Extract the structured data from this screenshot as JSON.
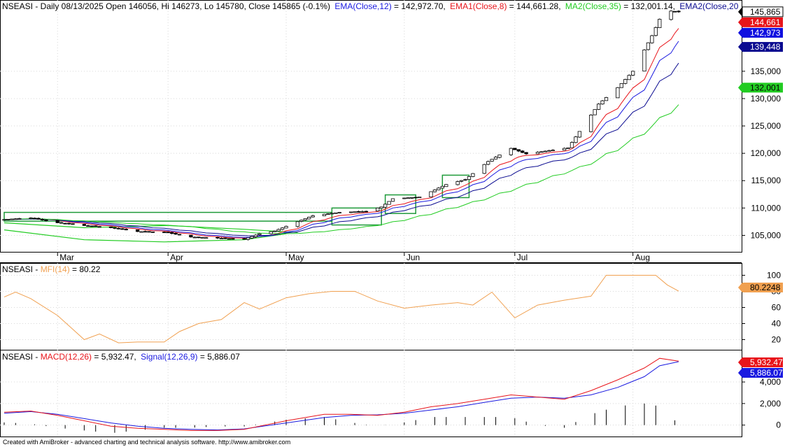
{
  "price_panel": {
    "symbol": "NSEASI",
    "header_info": " - Daily 08/13/2025 Open 146056, Hi 146273, Lo 145780, Close 145865 (-0.1%)",
    "ema12_label": "EMA(Close,12)",
    "ema12_value": " = 142,972.70,",
    "ema8_label": "EMA1(Close,8)",
    "ema8_value": " = 144,661.28,",
    "ma35_label": "MA2(Close,35)",
    "ma35_value": " = 132,001.14,",
    "ema20_label": "EMA2(Close,20",
    "price_axis_ticks": [
      "105,000",
      "110,000",
      "115,000",
      "120,000",
      "125,000",
      "130,000",
      "135,000"
    ],
    "last_value_labels": [
      {
        "text": "145,865",
        "value": 145865,
        "color": "#000000",
        "bg": "#ffffff"
      },
      {
        "text": "144,661",
        "value": 144661,
        "color": "#ffffff",
        "bg": "#e8141a"
      },
      {
        "text": "142,973",
        "value": 142973,
        "color": "#ffffff",
        "bg": "#1010e0"
      },
      {
        "text": "139,448",
        "value": 139448,
        "color": "#ffffff",
        "bg": "#0a0a90"
      },
      {
        "text": "132,001",
        "value": 132001,
        "color": "#000000",
        "bg": "#22cc22"
      }
    ],
    "month_labels": [
      "Mar",
      "Apr",
      "May",
      "Jun",
      "Jul",
      "Aug"
    ]
  },
  "mfi_panel": {
    "symbol": "NSEASI",
    "indicator_label": "MFI(14)",
    "indicator_value": " = 80.22",
    "axis_ticks": [
      "20",
      "40",
      "60",
      "80",
      "100"
    ],
    "last_value_label": "80.2248",
    "color": "#f0a050"
  },
  "macd_panel": {
    "symbol": "NSEASI",
    "macd_label": "MACD(12,26)",
    "macd_value": " = 5,932.47,",
    "signal_label": "Signal(12,26,9)",
    "signal_value": " = 5,886.07",
    "axis_ticks": [
      "0",
      "2,000",
      "4,000"
    ],
    "macd_last_label": "5,932.47",
    "signal_last_label": "5,886.07"
  },
  "footer_text": "Created with AmiBroker - advanced charting and technical analysis software. http://www.amibroker.com",
  "colors": {
    "ema8": "#e8141a",
    "ema12": "#1a1ae0",
    "ema20": "#0a0a90",
    "ma35": "#22cc22",
    "channel": "#1e9a3a",
    "mfi": "#f0a050",
    "macd": "#e8141a",
    "signal": "#1a1ae0"
  },
  "chart_data": [
    {
      "type": "candlestick",
      "name": "NSEASI Daily",
      "x_start": "2025-02-17",
      "x_end": "2025-08-13",
      "ylim": [
        102500,
        147000
      ],
      "month_starts": [
        "2025-03-03",
        "2025-04-01",
        "2025-05-02",
        "2025-06-02",
        "2025-07-01",
        "2025-08-01"
      ],
      "close_anchors": [
        [
          "2025-02-17",
          107900
        ],
        [
          "2025-02-24",
          108200
        ],
        [
          "2025-03-03",
          107300
        ],
        [
          "2025-03-10",
          106800
        ],
        [
          "2025-03-17",
          106400
        ],
        [
          "2025-03-24",
          105700
        ],
        [
          "2025-03-31",
          105600
        ],
        [
          "2025-04-07",
          104700
        ],
        [
          "2025-04-14",
          104500
        ],
        [
          "2025-04-21",
          104300
        ],
        [
          "2025-04-25",
          105300
        ],
        [
          "2025-04-29",
          105800
        ],
        [
          "2025-05-05",
          107500
        ],
        [
          "2025-05-09",
          108600
        ],
        [
          "2025-05-16",
          109200
        ],
        [
          "2025-05-23",
          109400
        ],
        [
          "2025-05-27",
          110200
        ],
        [
          "2025-05-30",
          111700
        ],
        [
          "2025-06-06",
          112000
        ],
        [
          "2025-06-13",
          114300
        ],
        [
          "2025-06-18",
          115200
        ],
        [
          "2025-06-24",
          118500
        ],
        [
          "2025-06-30",
          120900
        ],
        [
          "2025-07-04",
          119900
        ],
        [
          "2025-07-10",
          120500
        ],
        [
          "2025-07-15",
          121000
        ],
        [
          "2025-07-18",
          124000
        ],
        [
          "2025-07-23",
          129000
        ],
        [
          "2025-07-28",
          132000
        ],
        [
          "2025-08-01",
          135000
        ],
        [
          "2025-08-06",
          141500
        ],
        [
          "2025-08-08",
          144500
        ],
        [
          "2025-08-11",
          146000
        ],
        [
          "2025-08-13",
          145865
        ]
      ],
      "last_bar": {
        "date": "2025-08-13",
        "open": 146056,
        "high": 146273,
        "low": 145780,
        "close": 145865
      }
    },
    {
      "type": "line",
      "name": "MFI(14)",
      "ylim": [
        10,
        110
      ],
      "points": [
        [
          "2025-02-17",
          73
        ],
        [
          "2025-02-20",
          79
        ],
        [
          "2025-02-24",
          71
        ],
        [
          "2025-03-03",
          50
        ],
        [
          "2025-03-07",
          33
        ],
        [
          "2025-03-10",
          20
        ],
        [
          "2025-03-14",
          27
        ],
        [
          "2025-03-19",
          16
        ],
        [
          "2025-03-24",
          17
        ],
        [
          "2025-03-31",
          17
        ],
        [
          "2025-04-04",
          30
        ],
        [
          "2025-04-09",
          40
        ],
        [
          "2025-04-15",
          45
        ],
        [
          "2025-04-21",
          66
        ],
        [
          "2025-04-25",
          58
        ],
        [
          "2025-05-02",
          72
        ],
        [
          "2025-05-08",
          77
        ],
        [
          "2025-05-14",
          80
        ],
        [
          "2025-05-20",
          80
        ],
        [
          "2025-05-26",
          68
        ],
        [
          "2025-06-02",
          59
        ],
        [
          "2025-06-09",
          63
        ],
        [
          "2025-06-16",
          66
        ],
        [
          "2025-06-20",
          63
        ],
        [
          "2025-06-25",
          79
        ],
        [
          "2025-07-01",
          47
        ],
        [
          "2025-07-07",
          63
        ],
        [
          "2025-07-14",
          69
        ],
        [
          "2025-07-21",
          74
        ],
        [
          "2025-07-25",
          100
        ],
        [
          "2025-08-01",
          100
        ],
        [
          "2025-08-07",
          100
        ],
        [
          "2025-08-10",
          88
        ],
        [
          "2025-08-13",
          80.22
        ]
      ]
    },
    {
      "type": "line",
      "name": "MACD(12,26) / Signal(12,26,9)",
      "ylim": [
        -800,
        6600
      ],
      "macd_points": [
        [
          "2025-02-17",
          1200
        ],
        [
          "2025-02-24",
          1300
        ],
        [
          "2025-03-03",
          900
        ],
        [
          "2025-03-10",
          400
        ],
        [
          "2025-03-17",
          -100
        ],
        [
          "2025-03-24",
          -300
        ],
        [
          "2025-03-31",
          -400
        ],
        [
          "2025-04-07",
          -500
        ],
        [
          "2025-04-14",
          -500
        ],
        [
          "2025-04-21",
          -400
        ],
        [
          "2025-05-02",
          400
        ],
        [
          "2025-05-12",
          1000
        ],
        [
          "2025-05-19",
          1000
        ],
        [
          "2025-05-26",
          900
        ],
        [
          "2025-06-02",
          1200
        ],
        [
          "2025-06-09",
          1700
        ],
        [
          "2025-06-16",
          2000
        ],
        [
          "2025-06-23",
          2400
        ],
        [
          "2025-06-30",
          2800
        ],
        [
          "2025-07-07",
          2600
        ],
        [
          "2025-07-14",
          2400
        ],
        [
          "2025-07-21",
          3200
        ],
        [
          "2025-07-28",
          4200
        ],
        [
          "2025-08-04",
          5300
        ],
        [
          "2025-08-08",
          6200
        ],
        [
          "2025-08-13",
          5932.47
        ]
      ],
      "signal_points": [
        [
          "2025-02-17",
          1100
        ],
        [
          "2025-02-24",
          1250
        ],
        [
          "2025-03-03",
          1000
        ],
        [
          "2025-03-10",
          600
        ],
        [
          "2025-03-17",
          200
        ],
        [
          "2025-03-24",
          -100
        ],
        [
          "2025-03-31",
          -300
        ],
        [
          "2025-04-07",
          -400
        ],
        [
          "2025-04-14",
          -450
        ],
        [
          "2025-04-21",
          -350
        ],
        [
          "2025-05-02",
          200
        ],
        [
          "2025-05-12",
          700
        ],
        [
          "2025-05-19",
          900
        ],
        [
          "2025-05-26",
          950
        ],
        [
          "2025-06-02",
          1100
        ],
        [
          "2025-06-09",
          1400
        ],
        [
          "2025-06-16",
          1700
        ],
        [
          "2025-06-23",
          2100
        ],
        [
          "2025-06-30",
          2500
        ],
        [
          "2025-07-07",
          2600
        ],
        [
          "2025-07-14",
          2500
        ],
        [
          "2025-07-21",
          2800
        ],
        [
          "2025-07-28",
          3500
        ],
        [
          "2025-08-04",
          4500
        ],
        [
          "2025-08-08",
          5500
        ],
        [
          "2025-08-13",
          5886.07
        ]
      ]
    }
  ]
}
